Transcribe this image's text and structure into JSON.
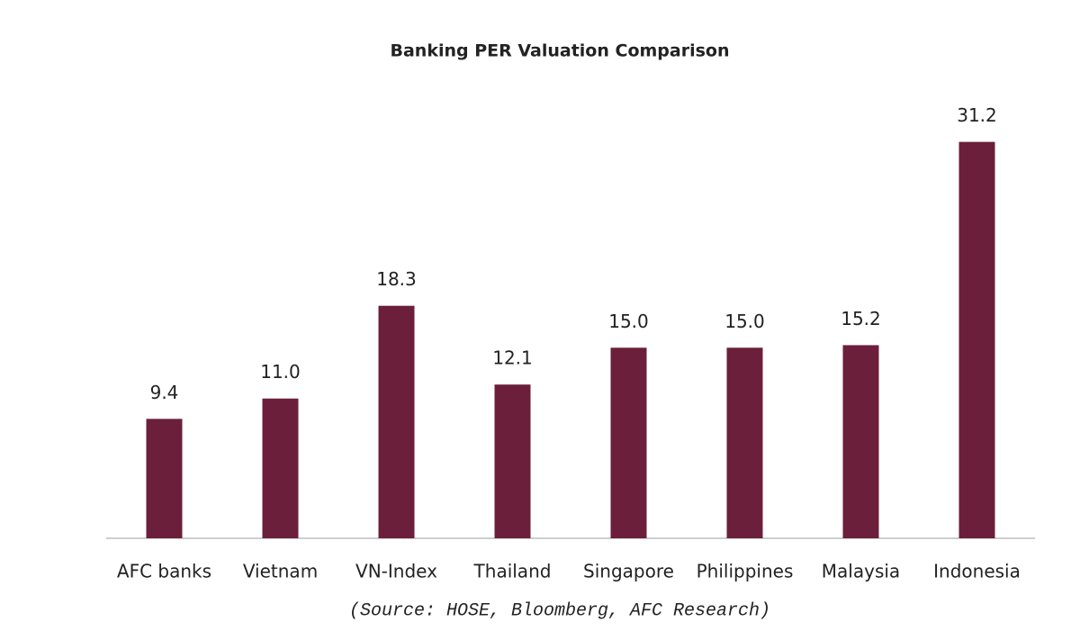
{
  "chart_data": {
    "type": "bar",
    "title": "Banking PER Valuation Comparison",
    "categories": [
      "AFC banks",
      "Vietnam",
      "VN-Index",
      "Thailand",
      "Singapore",
      "Philippines",
      "Malaysia",
      "Indonesia"
    ],
    "values": [
      9.4,
      11.0,
      18.3,
      12.1,
      15.0,
      15.0,
      15.2,
      31.2
    ],
    "value_labels": [
      "9.4",
      "11.0",
      "18.3",
      "12.1",
      "15.0",
      "15.0",
      "15.2",
      "31.2"
    ],
    "color": "#6b1f3a",
    "ylim": [
      0,
      35
    ],
    "source": "(Source: HOSE, Bloomberg, AFC Research)"
  }
}
